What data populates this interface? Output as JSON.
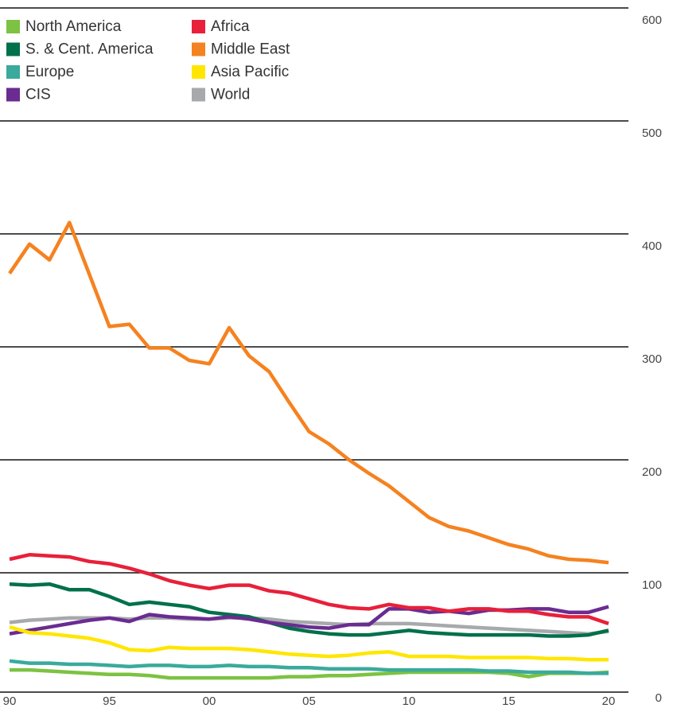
{
  "chart_data": {
    "type": "line",
    "legend": "upper left",
    "grid": true,
    "x": [
      1990,
      1991,
      1992,
      1993,
      1994,
      1995,
      1996,
      1997,
      1998,
      1999,
      2000,
      2001,
      2002,
      2003,
      2004,
      2005,
      2006,
      2007,
      2008,
      2009,
      2010,
      2011,
      2012,
      2013,
      2014,
      2015,
      2016,
      2017,
      2018,
      2019,
      2020
    ],
    "xlim": [
      1990,
      2020
    ],
    "xticks": [
      {
        "value": 1990,
        "label": "90"
      },
      {
        "value": 1995,
        "label": "95"
      },
      {
        "value": 2000,
        "label": "00"
      },
      {
        "value": 2005,
        "label": "05"
      },
      {
        "value": 2010,
        "label": "10"
      },
      {
        "value": 2015,
        "label": "15"
      },
      {
        "value": 2020,
        "label": "20"
      }
    ],
    "ylim": [
      0,
      600
    ],
    "yticks": [
      0,
      100,
      200,
      300,
      400,
      500,
      600
    ],
    "series": [
      {
        "name": "World",
        "color": "#a7a9ac",
        "values": [
          56,
          58,
          59,
          60,
          60,
          60,
          59,
          60,
          60,
          59,
          59,
          60,
          60,
          59,
          57,
          56,
          55,
          54,
          55,
          55,
          55,
          54,
          53,
          52,
          51,
          50,
          49,
          48,
          47,
          46,
          48
        ]
      },
      {
        "name": "North America",
        "color": "#7dc242",
        "values": [
          14,
          14,
          13,
          12,
          11,
          10,
          10,
          9,
          7,
          7,
          7,
          7,
          7,
          7,
          8,
          8,
          9,
          9,
          10,
          11,
          12,
          12,
          12,
          12,
          12,
          11,
          8,
          11,
          11,
          11,
          12
        ]
      },
      {
        "name": "S. & Cent. America",
        "color": "#00704a",
        "values": [
          90,
          89,
          90,
          85,
          85,
          79,
          72,
          74,
          72,
          70,
          65,
          63,
          61,
          56,
          51,
          48,
          46,
          45,
          45,
          47,
          49,
          47,
          46,
          45,
          45,
          45,
          45,
          44,
          44,
          45,
          49
        ]
      },
      {
        "name": "Europe",
        "color": "#3aaa9c",
        "values": [
          22,
          20,
          20,
          19,
          19,
          18,
          17,
          18,
          18,
          17,
          17,
          18,
          17,
          17,
          16,
          16,
          15,
          15,
          15,
          14,
          14,
          14,
          14,
          14,
          13,
          13,
          12,
          12,
          12,
          11,
          11
        ]
      },
      {
        "name": "CIS",
        "color": "#6a2c91",
        "values": [
          46,
          49,
          52,
          55,
          58,
          60,
          57,
          63,
          61,
          60,
          59,
          61,
          59,
          56,
          54,
          52,
          51,
          54,
          54,
          68,
          68,
          65,
          66,
          64,
          67,
          67,
          68,
          68,
          65,
          65,
          70
        ]
      },
      {
        "name": "Africa",
        "color": "#e8203a",
        "values": [
          112,
          116,
          115,
          114,
          110,
          108,
          104,
          99,
          93,
          89,
          86,
          89,
          89,
          84,
          82,
          77,
          72,
          69,
          68,
          72,
          69,
          69,
          66,
          68,
          68,
          66,
          66,
          63,
          61,
          61,
          55
        ]
      },
      {
        "name": "Middle East",
        "color": "#f58220",
        "values": [
          365,
          391,
          377,
          410,
          364,
          318,
          320,
          299,
          299,
          288,
          285,
          317,
          292,
          278,
          251,
          225,
          214,
          200,
          188,
          177,
          163,
          149,
          141,
          137,
          131,
          125,
          121,
          115,
          112,
          111,
          109
        ]
      },
      {
        "name": "Asia Pacific",
        "color": "#ffe600",
        "values": [
          52,
          47,
          46,
          44,
          42,
          38,
          32,
          31,
          34,
          33,
          33,
          33,
          32,
          30,
          28,
          27,
          26,
          27,
          29,
          30,
          26,
          26,
          26,
          25,
          25,
          25,
          25,
          24,
          24,
          23,
          23
        ]
      }
    ]
  }
}
